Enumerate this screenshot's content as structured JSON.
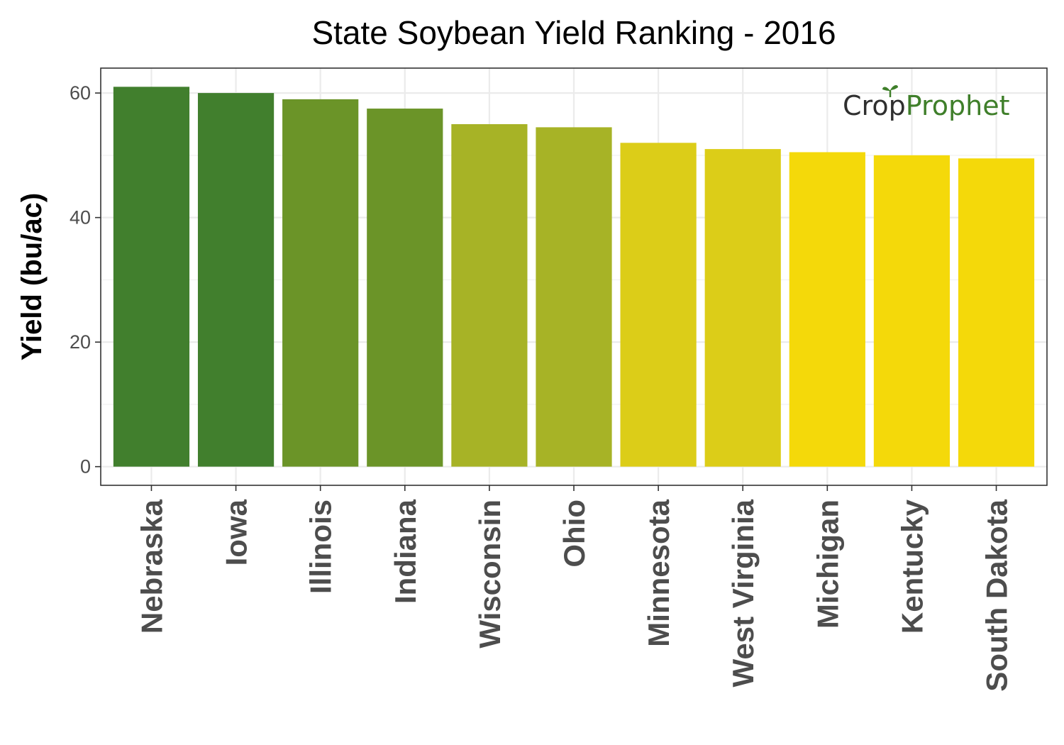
{
  "chart_data": {
    "type": "bar",
    "title": "State Soybean Yield Ranking - 2016",
    "xlabel": "",
    "ylabel": "Yield (bu/ac)",
    "categories": [
      "Nebraska",
      "Iowa",
      "Illinois",
      "Indiana",
      "Wisconsin",
      "Ohio",
      "Minnesota",
      "West Virginia",
      "Michigan",
      "Kentucky",
      "South Dakota"
    ],
    "values": [
      61,
      60,
      59,
      57.5,
      55,
      54.5,
      52,
      51,
      50.5,
      50,
      49.5
    ],
    "colors": [
      "#417f2d",
      "#417f2d",
      "#6b9428",
      "#6b9428",
      "#a7b326",
      "#a7b326",
      "#dccd18",
      "#dccd18",
      "#f4d90a",
      "#f4d90a",
      "#f4d90a"
    ],
    "ylim": [
      -3,
      64
    ],
    "yticks": [
      0,
      20,
      40,
      60
    ],
    "grid": true,
    "legend": "none"
  },
  "logo": {
    "part1": "Cr",
    "part2": "o",
    "part3": "p",
    "part4": "Prophet",
    "icon": "sprout-icon"
  }
}
